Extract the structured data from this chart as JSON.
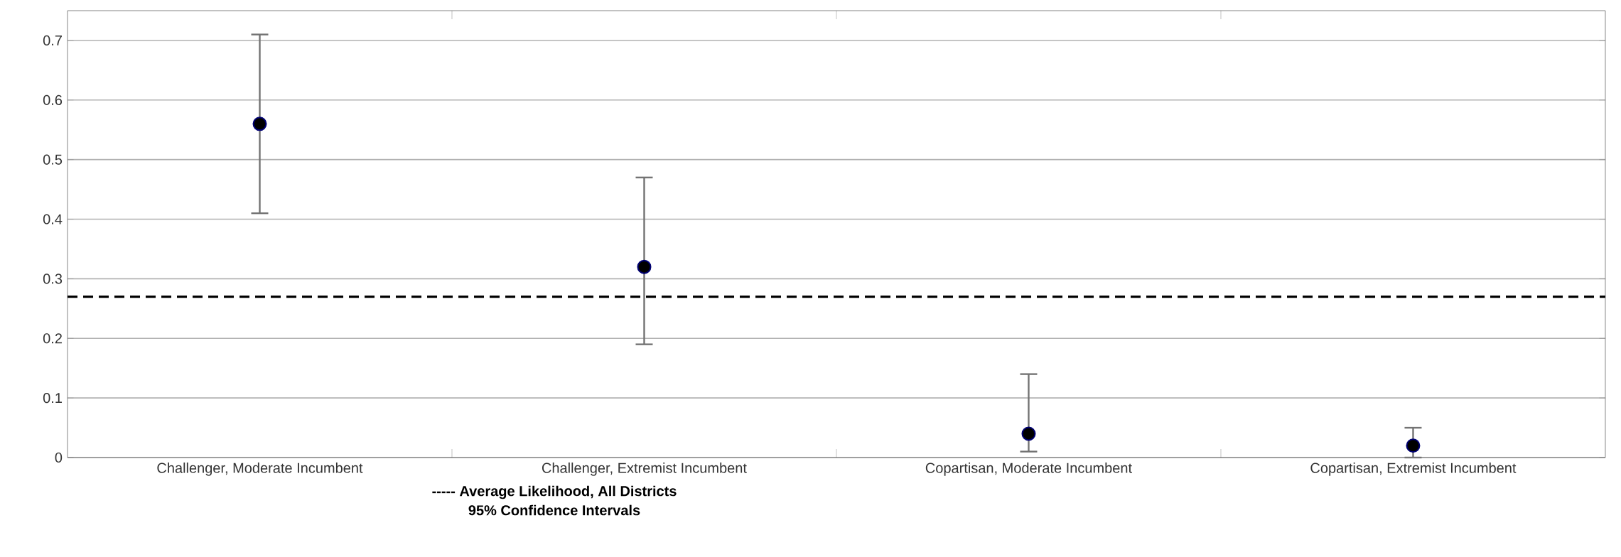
{
  "chart_data": {
    "type": "scatter",
    "categories": [
      "Challenger, Moderate Incumbent",
      "Challenger, Extremist Incumbent",
      "Copartisan, Moderate Incumbent",
      "Copartisan, Extremist Incumbent"
    ],
    "values": [
      0.56,
      0.32,
      0.04,
      0.02
    ],
    "errors": [
      [
        0.41,
        0.71
      ],
      [
        0.19,
        0.47
      ],
      [
        0.01,
        0.14
      ],
      [
        0.0,
        0.05
      ]
    ],
    "color": "#000000",
    "marker": "circle",
    "ylim": [
      0,
      0.75
    ],
    "yticks": [
      0,
      0.1,
      0.2,
      0.3,
      0.4,
      0.5,
      0.6,
      0.7
    ],
    "grid": "y",
    "ref_lines": [
      {
        "axis": "y",
        "value": 0.27,
        "color": "#000000",
        "line_style": "dashed"
      }
    ],
    "annotations": [
      "**----- Average Likelihood, All Districts**",
      "**95% Confidence Intervals**"
    ]
  }
}
